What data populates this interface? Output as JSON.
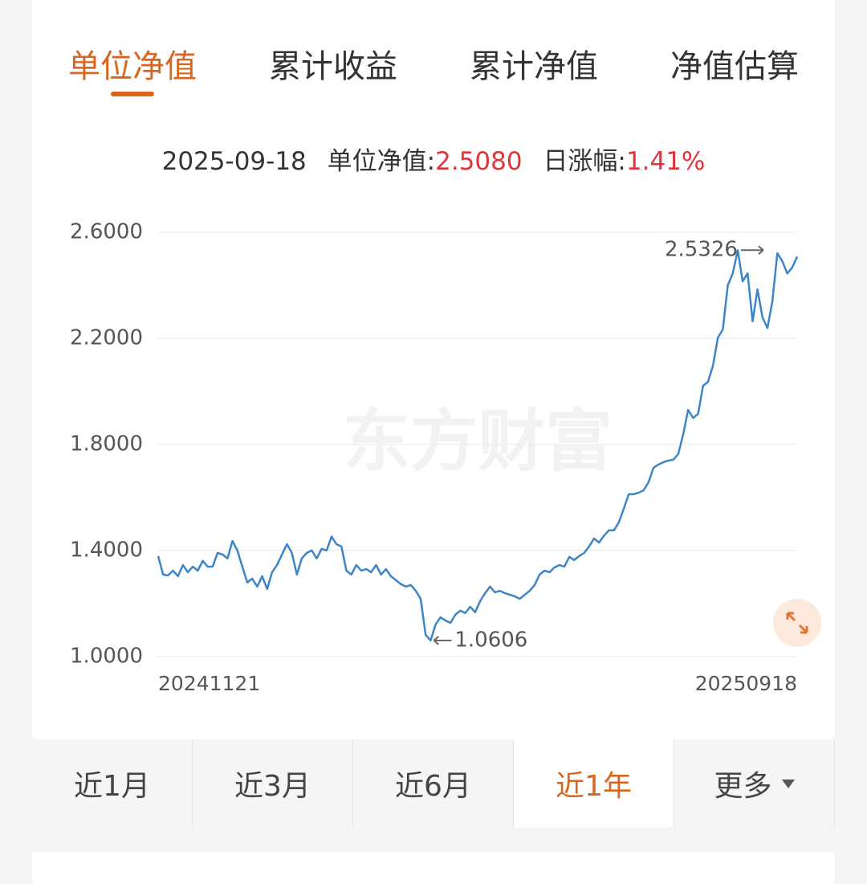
{
  "tabs": {
    "items": [
      "单位净值",
      "累计收益",
      "累计净值",
      "净值估算"
    ],
    "active": 0
  },
  "info": {
    "date": "2025-09-18",
    "nav_label": "单位净值:",
    "nav_value": "2.5080",
    "change_label": "日涨幅:",
    "change_value": "1.41%"
  },
  "watermark": "东方财富",
  "chart_data": {
    "type": "line",
    "categories": [
      "20241121",
      null,
      null,
      null,
      null,
      null,
      null,
      null,
      null,
      null,
      null,
      null,
      null,
      null,
      null,
      null,
      null,
      null,
      null,
      null,
      null,
      null,
      null,
      null,
      null,
      null,
      null,
      null,
      null,
      null,
      null,
      null,
      null,
      null,
      null,
      null,
      null,
      null,
      null,
      null,
      null,
      null,
      null,
      null,
      null,
      null,
      null,
      null,
      null,
      null,
      null,
      null,
      null,
      null,
      null,
      null,
      null,
      null,
      null,
      null,
      null,
      null,
      null,
      null,
      null,
      null,
      null,
      null,
      null,
      null,
      null,
      null,
      null,
      null,
      null,
      null,
      null,
      null,
      null,
      null,
      null,
      null,
      null,
      null,
      null,
      null,
      null,
      null,
      null,
      null,
      null,
      null,
      null,
      null,
      null,
      null,
      null,
      null,
      null,
      null,
      null,
      null,
      null,
      null,
      null,
      null,
      null,
      null,
      null,
      null,
      null,
      null,
      null,
      null,
      null,
      null,
      null,
      null,
      null,
      null,
      null,
      null,
      null,
      null,
      null,
      null,
      null,
      null,
      null,
      "20250918"
    ],
    "series": [
      {
        "color": "#3d85c6",
        "values": [
          1.379,
          1.309,
          1.306,
          1.324,
          1.303,
          1.345,
          1.318,
          1.339,
          1.324,
          1.361,
          1.339,
          1.339,
          1.391,
          1.385,
          1.37,
          1.436,
          1.4,
          1.339,
          1.279,
          1.294,
          1.264,
          1.303,
          1.255,
          1.318,
          1.345,
          1.385,
          1.424,
          1.391,
          1.309,
          1.37,
          1.391,
          1.4,
          1.37,
          1.406,
          1.4,
          1.452,
          1.424,
          1.415,
          1.324,
          1.309,
          1.345,
          1.324,
          1.33,
          1.318,
          1.345,
          1.309,
          1.33,
          1.303,
          1.288,
          1.273,
          1.264,
          1.27,
          1.248,
          1.218,
          1.082,
          1.0606,
          1.121,
          1.148,
          1.136,
          1.127,
          1.158,
          1.173,
          1.164,
          1.188,
          1.167,
          1.209,
          1.239,
          1.264,
          1.242,
          1.248,
          1.239,
          1.233,
          1.227,
          1.218,
          1.233,
          1.248,
          1.27,
          1.309,
          1.324,
          1.318,
          1.336,
          1.345,
          1.339,
          1.376,
          1.364,
          1.379,
          1.391,
          1.415,
          1.445,
          1.43,
          1.455,
          1.476,
          1.476,
          1.506,
          1.558,
          1.612,
          1.612,
          1.618,
          1.627,
          1.658,
          1.712,
          1.724,
          1.733,
          1.739,
          1.742,
          1.764,
          1.839,
          1.93,
          1.9,
          1.915,
          2.021,
          2.036,
          2.097,
          2.203,
          2.233,
          2.4,
          2.445,
          2.5326,
          2.415,
          2.445,
          2.264,
          2.385,
          2.279,
          2.239,
          2.339,
          2.521,
          2.491,
          2.445,
          2.467,
          2.508
        ]
      }
    ],
    "ylim": [
      1.0,
      2.6
    ],
    "yticks": [
      {
        "value": 2.6,
        "label": "2.6000"
      },
      {
        "value": 2.2,
        "label": "2.2000"
      },
      {
        "value": 1.8,
        "label": "1.8000"
      },
      {
        "value": 1.4,
        "label": "1.4000"
      },
      {
        "value": 1.0,
        "label": "1.0000"
      }
    ],
    "grid": true
  },
  "ranges": {
    "items": [
      "近1月",
      "近3月",
      "近6月",
      "近1年",
      "更多"
    ],
    "active": 3
  }
}
